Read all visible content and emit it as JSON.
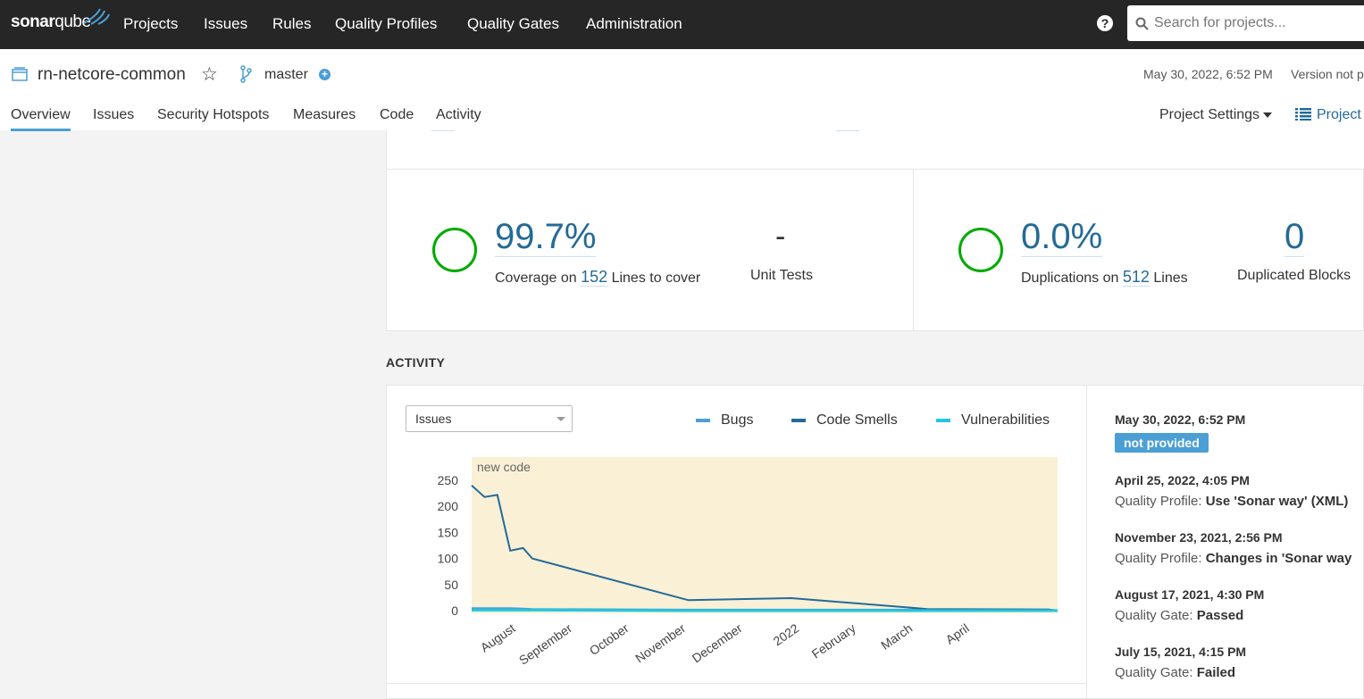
{
  "topnav": {
    "logo_bold": "sonar",
    "logo_light": "qube",
    "items": [
      "Projects",
      "Issues",
      "Rules",
      "Quality Profiles",
      "Quality Gates",
      "Administration"
    ],
    "help_label": "?",
    "search_placeholder": "Search for projects..."
  },
  "project": {
    "name": "rn-netcore-common",
    "branch": "master",
    "analysis_date": "May 30, 2022, 6:52 PM",
    "version": "Version not p",
    "tabs": [
      "Overview",
      "Issues",
      "Security Hotspots",
      "Measures",
      "Code",
      "Activity"
    ],
    "active_tab": "Overview",
    "settings_label": "Project Settings",
    "info_label": "Project"
  },
  "measures": {
    "coverage_value": "99.7%",
    "coverage_prefix": "Coverage on",
    "coverage_lines": "152",
    "coverage_suffix": "Lines to cover",
    "unit_tests_value": "-",
    "unit_tests_label": "Unit Tests",
    "duplications_value": "0.0%",
    "duplications_prefix": "Duplications on",
    "duplications_lines": "512",
    "duplications_suffix": "Lines",
    "dup_blocks_value": "0",
    "dup_blocks_label": "Duplicated Blocks",
    "ring_color": "#00aa00"
  },
  "activity": {
    "title": "ACTIVITY",
    "select_value": "Issues",
    "legend": [
      {
        "label": "Bugs",
        "color": "#4b9fd5"
      },
      {
        "label": "Code Smells",
        "color": "#236a97"
      },
      {
        "label": "Vulnerabilities",
        "color": "#24c6e0"
      }
    ],
    "events": [
      {
        "date": "May 30, 2022, 6:52 PM",
        "badge": "not provided"
      },
      {
        "date": "April 25, 2022, 4:05 PM",
        "desc_label": "Quality Profile:",
        "desc_value": "Use 'Sonar way' (XML)"
      },
      {
        "date": "November 23, 2021, 2:56 PM",
        "desc_label": "Quality Profile:",
        "desc_value": "Changes in 'Sonar way"
      },
      {
        "date": "August 17, 2021, 4:30 PM",
        "desc_label": "Quality Gate:",
        "desc_value": "Passed"
      },
      {
        "date": "July 15, 2021, 4:15 PM",
        "desc_label": "Quality Gate:",
        "desc_value": "Failed"
      }
    ]
  },
  "chart_data": {
    "type": "line",
    "new_code_label": "new code",
    "ylim": [
      0,
      250
    ],
    "yticks": [
      0,
      50,
      100,
      150,
      200,
      250
    ],
    "xticks": [
      "August",
      "September",
      "October",
      "November",
      "December",
      "2022",
      "February",
      "March",
      "April"
    ],
    "x": [
      "2021-07-15",
      "2021-07-22",
      "2021-07-29",
      "2021-08-05",
      "2021-08-12",
      "2021-08-17",
      "2021-11-10",
      "2022-01-05",
      "2022-03-20",
      "2022-05-25",
      "2022-05-30"
    ],
    "series": [
      {
        "name": "Bugs",
        "color": "#4b9fd5",
        "values": [
          4,
          4,
          4,
          4,
          3,
          2,
          1,
          1,
          1,
          1,
          0
        ]
      },
      {
        "name": "Code Smells",
        "color": "#236a97",
        "values": [
          240,
          218,
          222,
          115,
          120,
          100,
          20,
          24,
          3,
          2,
          0
        ]
      },
      {
        "name": "Vulnerabilities",
        "color": "#24c6e0",
        "values": [
          1,
          1,
          1,
          1,
          1,
          1,
          0,
          0,
          0,
          0,
          0
        ]
      }
    ]
  }
}
